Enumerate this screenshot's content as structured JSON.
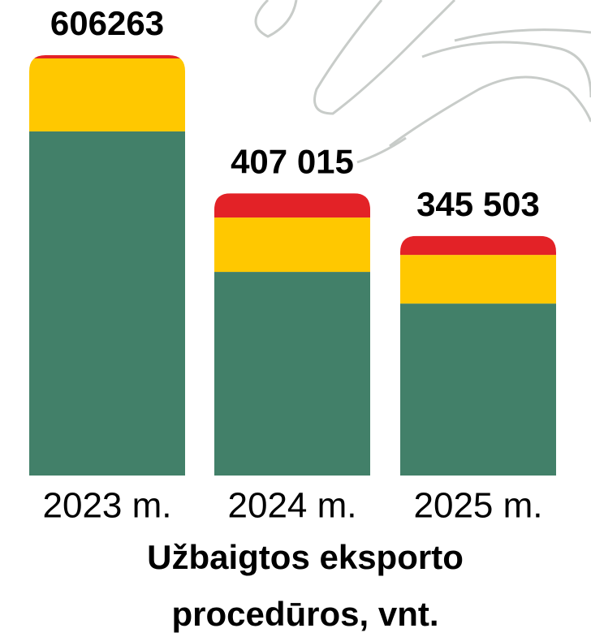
{
  "chart_data": {
    "type": "stacked_bar",
    "categories": [
      "2023 m.",
      "2024 m.",
      "2025 m."
    ],
    "series": [
      {
        "color": "#428069",
        "values": [
          496300,
          293700,
          248000
        ]
      },
      {
        "color": "#ffc800",
        "values": [
          105300,
          78400,
          70200
        ]
      },
      {
        "color": "#e32227",
        "values": [
          4663,
          34915,
          27303
        ]
      }
    ],
    "totals": [
      606263,
      407015,
      345503
    ],
    "value_labels": [
      "606263",
      "407 015",
      "345 503"
    ],
    "xlabel": [
      "Užbaigtos eksporto",
      "procedūros, vnt."
    ]
  }
}
